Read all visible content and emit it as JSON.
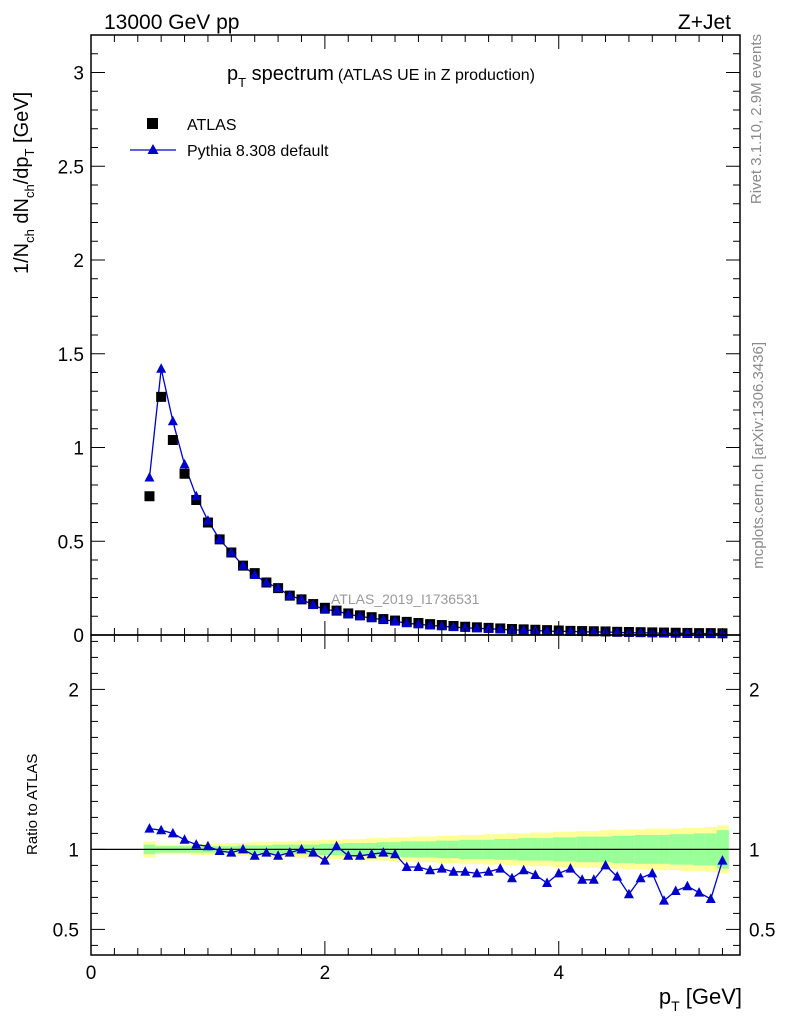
{
  "header": {
    "energy_label": "13000 GeV pp",
    "process_label": "Z+Jet"
  },
  "side_text": {
    "rivet": "Rivet 3.1.10,  2.9M events",
    "mcplots": "mcplots.cern.ch [arXiv:1306.3436]"
  },
  "watermark": "ATLAS_2019_I1736531",
  "chart_data": [
    {
      "type": "scatter",
      "title": {
        "main": "p",
        "sub": "T",
        "rest": " spectrum",
        "note": "(ATLAS UE in Z production)"
      },
      "ylabel": {
        "p1": "1/N",
        "s1": "ch",
        "p2": " dN",
        "s2": "ch",
        "p3": "/dp",
        "s3": "T",
        "p4": " [GeV]"
      },
      "xlim": [
        0,
        5.55
      ],
      "ylim": [
        0,
        3.2
      ],
      "y_ticks": [
        0,
        0.5,
        1,
        1.5,
        2,
        2.5,
        3
      ],
      "y_tick_labels": [
        "0",
        "0.5",
        "1",
        "1.5",
        "2",
        "2.5",
        "3"
      ],
      "legend": {
        "placement": "top-left"
      },
      "colors": {
        "data": "#000000",
        "mc": "#0000cc"
      },
      "series": [
        {
          "name": "ATLAS",
          "marker": "square",
          "x": [
            0.5,
            0.6,
            0.7,
            0.8,
            0.9,
            1.0,
            1.1,
            1.2,
            1.3,
            1.4,
            1.5,
            1.6,
            1.7,
            1.8,
            1.9,
            2.0,
            2.1,
            2.2,
            2.3,
            2.4,
            2.5,
            2.6,
            2.7,
            2.8,
            2.9,
            3.0,
            3.1,
            3.2,
            3.3,
            3.4,
            3.5,
            3.6,
            3.7,
            3.8,
            3.9,
            4.0,
            4.1,
            4.2,
            4.3,
            4.4,
            4.5,
            4.6,
            4.7,
            4.8,
            4.9,
            5.0,
            5.1,
            5.2,
            5.3,
            5.4
          ],
          "y": [
            0.74,
            1.27,
            1.04,
            0.86,
            0.72,
            0.6,
            0.51,
            0.44,
            0.37,
            0.33,
            0.28,
            0.25,
            0.21,
            0.19,
            0.165,
            0.145,
            0.13,
            0.115,
            0.105,
            0.095,
            0.085,
            0.077,
            0.07,
            0.064,
            0.058,
            0.053,
            0.048,
            0.044,
            0.041,
            0.038,
            0.035,
            0.032,
            0.03,
            0.028,
            0.026,
            0.024,
            0.022,
            0.021,
            0.02,
            0.019,
            0.017,
            0.016,
            0.015,
            0.014,
            0.013,
            0.012,
            0.011,
            0.01,
            0.01,
            0.009
          ]
        },
        {
          "name": "Pythia 8.308 default",
          "marker": "triangle",
          "x": [
            0.5,
            0.6,
            0.7,
            0.8,
            0.9,
            1.0,
            1.1,
            1.2,
            1.3,
            1.4,
            1.5,
            1.6,
            1.7,
            1.8,
            1.9,
            2.0,
            2.1,
            2.2,
            2.3,
            2.4,
            2.5,
            2.6,
            2.7,
            2.8,
            2.9,
            3.0,
            3.1,
            3.2,
            3.3,
            3.4,
            3.5,
            3.6,
            3.7,
            3.8,
            3.9,
            4.0,
            4.1,
            4.2,
            4.3,
            4.4,
            4.5,
            4.6,
            4.7,
            4.8,
            4.9,
            5.0,
            5.1,
            5.2,
            5.3,
            5.4
          ],
          "y": [
            0.84,
            1.42,
            1.14,
            0.91,
            0.74,
            0.61,
            0.51,
            0.44,
            0.37,
            0.32,
            0.28,
            0.25,
            0.21,
            0.19,
            0.16,
            0.135,
            0.13,
            0.11,
            0.1,
            0.09,
            0.082,
            0.074,
            0.063,
            0.057,
            0.051,
            0.047,
            0.042,
            0.038,
            0.036,
            0.033,
            0.031,
            0.027,
            0.026,
            0.024,
            0.021,
            0.02,
            0.019,
            0.017,
            0.016,
            0.016,
            0.014,
            0.012,
            0.012,
            0.011,
            0.009,
            0.009,
            0.009,
            0.008,
            0.007,
            0.008
          ]
        }
      ]
    },
    {
      "type": "scatter",
      "ylabel": "Ratio to ATLAS",
      "xlabel": {
        "main": "p",
        "sub": "T",
        "rest": " [GeV]"
      },
      "xlim": [
        0,
        5.55
      ],
      "ylim": [
        0.34,
        2.34
      ],
      "x_ticks": [
        0,
        2,
        4
      ],
      "x_tick_labels": [
        "0",
        "2",
        "4"
      ],
      "y_ticks": [
        0.5,
        1,
        2
      ],
      "y_tick_labels": [
        "0.5",
        "1",
        "2"
      ],
      "reference_line": 1,
      "colors": {
        "band_outer": "#ffff99",
        "band_inner": "#99ff99",
        "mc": "#0000cc"
      },
      "uncertainty_band": {
        "x": [
          0.5,
          0.6,
          0.7,
          0.8,
          0.9,
          1.0,
          1.1,
          1.2,
          1.3,
          1.4,
          1.5,
          1.6,
          1.7,
          1.8,
          1.9,
          2.0,
          2.1,
          2.2,
          2.3,
          2.4,
          2.5,
          2.6,
          2.7,
          2.8,
          2.9,
          3.0,
          3.1,
          3.2,
          3.3,
          3.4,
          3.5,
          3.6,
          3.7,
          3.8,
          3.9,
          4.0,
          4.1,
          4.2,
          4.3,
          4.4,
          4.5,
          4.6,
          4.7,
          4.8,
          4.9,
          5.0,
          5.1,
          5.2,
          5.3,
          5.4
        ],
        "inner_half_width": [
          0.03,
          0.02,
          0.02,
          0.02,
          0.02,
          0.02,
          0.02,
          0.02,
          0.025,
          0.025,
          0.025,
          0.03,
          0.03,
          0.03,
          0.03,
          0.035,
          0.035,
          0.04,
          0.04,
          0.04,
          0.045,
          0.045,
          0.05,
          0.05,
          0.05,
          0.055,
          0.055,
          0.06,
          0.06,
          0.06,
          0.065,
          0.065,
          0.07,
          0.07,
          0.07,
          0.075,
          0.075,
          0.08,
          0.08,
          0.08,
          0.085,
          0.085,
          0.09,
          0.09,
          0.09,
          0.095,
          0.095,
          0.1,
          0.1,
          0.12
        ],
        "outer_half_width": [
          0.05,
          0.03,
          0.03,
          0.03,
          0.035,
          0.035,
          0.035,
          0.04,
          0.04,
          0.045,
          0.045,
          0.05,
          0.05,
          0.055,
          0.055,
          0.06,
          0.06,
          0.065,
          0.065,
          0.07,
          0.07,
          0.075,
          0.075,
          0.08,
          0.08,
          0.085,
          0.085,
          0.09,
          0.09,
          0.095,
          0.095,
          0.1,
          0.1,
          0.105,
          0.105,
          0.11,
          0.11,
          0.115,
          0.115,
          0.12,
          0.12,
          0.125,
          0.125,
          0.13,
          0.13,
          0.13,
          0.135,
          0.135,
          0.14,
          0.15
        ]
      },
      "series": [
        {
          "name": "Pythia 8.308 default",
          "marker": "triangle",
          "x": [
            0.5,
            0.6,
            0.7,
            0.8,
            0.9,
            1.0,
            1.1,
            1.2,
            1.3,
            1.4,
            1.5,
            1.6,
            1.7,
            1.8,
            1.9,
            2.0,
            2.1,
            2.2,
            2.3,
            2.4,
            2.5,
            2.6,
            2.7,
            2.8,
            2.9,
            3.0,
            3.1,
            3.2,
            3.3,
            3.4,
            3.5,
            3.6,
            3.7,
            3.8,
            3.9,
            4.0,
            4.1,
            4.2,
            4.3,
            4.4,
            4.5,
            4.6,
            4.7,
            4.8,
            4.9,
            5.0,
            5.1,
            5.2,
            5.3,
            5.4
          ],
          "y": [
            1.13,
            1.12,
            1.1,
            1.06,
            1.03,
            1.02,
            0.99,
            0.98,
            1.0,
            0.96,
            0.98,
            0.96,
            0.98,
            1.0,
            0.98,
            0.93,
            1.02,
            0.96,
            0.96,
            0.97,
            0.98,
            0.97,
            0.89,
            0.89,
            0.87,
            0.88,
            0.86,
            0.86,
            0.85,
            0.86,
            0.88,
            0.82,
            0.87,
            0.84,
            0.79,
            0.85,
            0.88,
            0.81,
            0.81,
            0.9,
            0.83,
            0.72,
            0.82,
            0.85,
            0.68,
            0.74,
            0.77,
            0.73,
            0.69,
            0.93
          ]
        }
      ]
    }
  ]
}
